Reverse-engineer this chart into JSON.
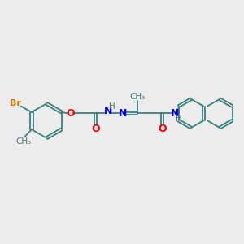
{
  "background_color": "#ececec",
  "bond_color": "#3a8080",
  "atom_colors": {
    "Br": "#cc7700",
    "O": "#ff0000",
    "N": "#0000ee",
    "H_color": "#4a7070",
    "C": "#3a8080"
  },
  "figsize": [
    3.0,
    3.0
  ],
  "dpi": 100,
  "xlim": [
    0,
    10
  ],
  "ylim": [
    0,
    10
  ]
}
